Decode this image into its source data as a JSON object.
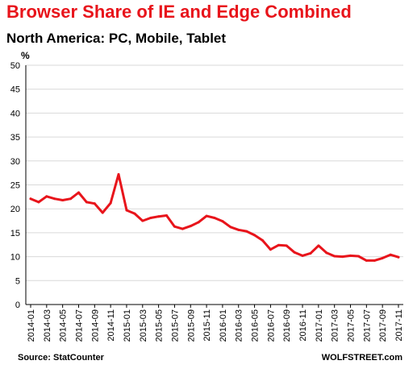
{
  "chart_data": {
    "type": "line",
    "title": "Browser Share of IE and Edge Combined",
    "subtitle": "North America: PC, Mobile, Tablet",
    "ylabel": "%",
    "ylim": [
      0,
      50
    ],
    "yticks": [
      0,
      5,
      10,
      15,
      20,
      25,
      30,
      35,
      40,
      45,
      50
    ],
    "grid": true,
    "xtick_labels": [
      "2014-01",
      "2014-03",
      "2014-05",
      "2014-07",
      "2014-09",
      "2014-11",
      "2015-01",
      "2015-03",
      "2015-05",
      "2015-07",
      "2015-09",
      "2015-11",
      "2016-01",
      "2016-03",
      "2016-05",
      "2016-07",
      "2016-09",
      "2016-11",
      "2017-01",
      "2017-03",
      "2017-05",
      "2017-07",
      "2017-09",
      "2017-11"
    ],
    "x": [
      "2014-01",
      "2014-02",
      "2014-03",
      "2014-04",
      "2014-05",
      "2014-06",
      "2014-07",
      "2014-08",
      "2014-09",
      "2014-10",
      "2014-11",
      "2014-12",
      "2015-01",
      "2015-02",
      "2015-03",
      "2015-04",
      "2015-05",
      "2015-06",
      "2015-07",
      "2015-08",
      "2015-09",
      "2015-10",
      "2015-11",
      "2015-12",
      "2016-01",
      "2016-02",
      "2016-03",
      "2016-04",
      "2016-05",
      "2016-06",
      "2016-07",
      "2016-08",
      "2016-09",
      "2016-10",
      "2016-11",
      "2016-12",
      "2017-01",
      "2017-02",
      "2017-03",
      "2017-04",
      "2017-05",
      "2017-06",
      "2017-07",
      "2017-08",
      "2017-09",
      "2017-10",
      "2017-11"
    ],
    "series": [
      {
        "color": "#e8141b",
        "values": [
          22.1,
          21.4,
          22.6,
          22.1,
          21.8,
          22.1,
          23.4,
          21.4,
          21.1,
          19.2,
          21.2,
          27.2,
          19.7,
          19.0,
          17.5,
          18.1,
          18.4,
          18.6,
          16.3,
          15.8,
          16.4,
          17.2,
          18.5,
          18.1,
          17.4,
          16.2,
          15.6,
          15.3,
          14.5,
          13.4,
          11.5,
          12.4,
          12.3,
          10.9,
          10.2,
          10.7,
          12.3,
          10.8,
          10.1,
          10.0,
          10.2,
          10.1,
          9.2,
          9.2,
          9.7,
          10.4,
          9.9
        ]
      }
    ]
  },
  "header": {
    "title": "Browser Share of IE and Edge Combined",
    "subtitle": "North America: PC, Mobile, Tablet"
  },
  "footer": {
    "source": "Source: StatCounter",
    "brand": "WOLFSTREET.com"
  },
  "colors": {
    "title": "#e8141b",
    "line": "#e8141b",
    "grid": "#d9d9d9"
  }
}
